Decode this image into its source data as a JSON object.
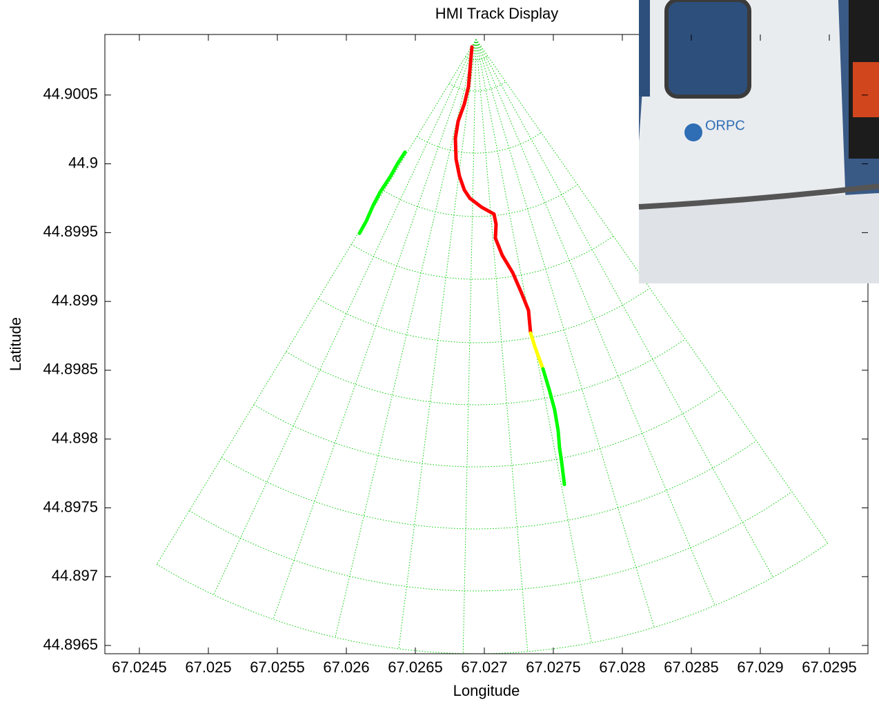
{
  "chart_data": {
    "type": "line",
    "title": "HMI Track Display",
    "xlabel": "Longitude",
    "ylabel": "Latitude",
    "xlim": [
      67.02425,
      67.02978
    ],
    "ylim": [
      44.89644,
      44.90094
    ],
    "xticks": [
      67.0245,
      67.025,
      67.0255,
      67.026,
      67.0265,
      67.027,
      67.0275,
      67.028,
      67.0285,
      67.029,
      67.0295
    ],
    "yticks": [
      44.8965,
      44.897,
      44.8975,
      44.898,
      44.8985,
      44.899,
      44.8995,
      44.9,
      44.9005
    ],
    "series": [
      {
        "color": "#00ff00",
        "x": [
          67.026425,
          67.02637,
          67.02632,
          67.026245,
          67.026195,
          67.026145,
          67.026095
        ],
        "values": [
          44.900085,
          44.9,
          44.89991,
          44.899795,
          44.8997,
          44.899585,
          44.899495
        ]
      },
      {
        "color": "#ff0000",
        "x": [
          67.02691,
          67.0269,
          67.026885,
          67.026855,
          67.02681,
          67.02679,
          67.026795,
          67.02682,
          67.026855,
          67.026895,
          67.02698,
          67.02707,
          67.027085,
          67.02708,
          67.02713,
          67.027205,
          67.02727,
          67.02732,
          67.027335
        ],
        "values": [
          44.90085,
          44.900735,
          44.90056,
          44.900435,
          44.90031,
          44.900185,
          44.900035,
          44.89991,
          44.89981,
          44.89975,
          44.899685,
          44.899635,
          44.89956,
          44.89946,
          44.899335,
          44.89921,
          44.89906,
          44.898935,
          44.89877
        ]
      },
      {
        "color": "#ffff00",
        "x": [
          67.027335,
          67.02737,
          67.027425
        ],
        "values": [
          44.89877,
          44.89866,
          44.89851
        ]
      },
      {
        "color": "#00ff00",
        "x": [
          67.027425,
          67.02747,
          67.02751,
          67.027535,
          67.027545,
          67.02756,
          67.02758
        ],
        "values": [
          44.89851,
          44.89836,
          44.89821,
          44.89806,
          44.897935,
          44.897835,
          44.89767
        ]
      }
    ]
  },
  "inset": {
    "logo_text": "ORPC"
  }
}
